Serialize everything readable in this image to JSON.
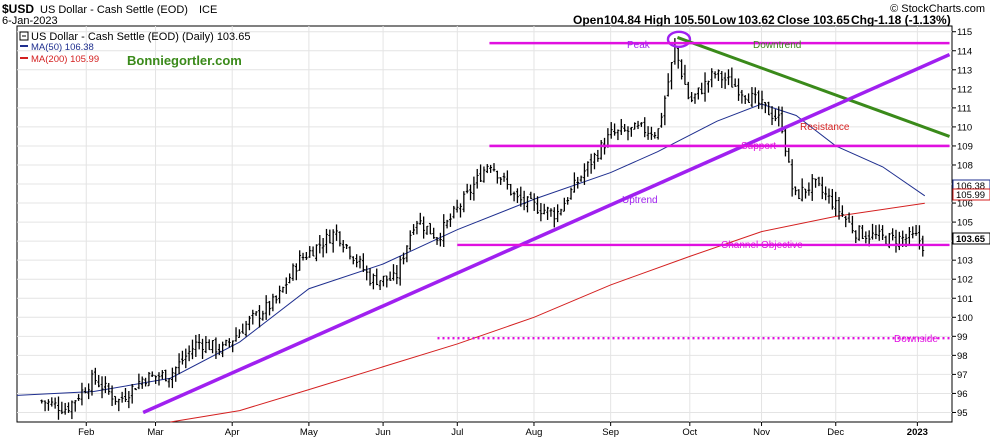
{
  "header": {
    "symbol": "$USD",
    "name": "US Dollar - Cash Settle (EOD)",
    "exchange": "ICE",
    "copyright": "© StockCharts.com",
    "date": "6-Jan-2023",
    "ohlc": {
      "open_label": "Open",
      "open": "104.84",
      "high_label": "High",
      "high": "105.50",
      "low_label": "Low",
      "low": "103.62",
      "close_label": "Close",
      "close": "103.65",
      "chg_label": "Chg",
      "chg": "-1.18 (-1.13%)"
    }
  },
  "legend": {
    "price": "US Dollar - Cash Settle (EOD) (Daily) 103.65",
    "ma50": "MA(50) 106.38",
    "ma200": "MA(200) 105.99",
    "watermark": "Bonniegortler.com"
  },
  "colors": {
    "bars": "#000000",
    "ma50": "#1f2f8f",
    "ma200": "#d42020",
    "trend_lines": "#a020f0",
    "channel_lines": "#e010e0",
    "downtrend": "#3a8a1a",
    "grid": "#e4e4e4"
  },
  "chart_data": {
    "type": "line",
    "title": "US Dollar - Cash Settle (EOD) (Daily)",
    "ylim": [
      94.5,
      115.3
    ],
    "y_ticks": [
      95,
      96,
      97,
      98,
      99,
      100,
      101,
      102,
      103,
      104,
      105,
      106,
      107,
      108,
      109,
      110,
      111,
      112,
      113,
      114,
      115
    ],
    "x_ticks": [
      "Feb",
      "Mar",
      "Apr",
      "May",
      "Jun",
      "Jul",
      "Aug",
      "Sep",
      "Oct",
      "Nov",
      "Dec",
      "2023"
    ],
    "grid": true,
    "last_value_tags": [
      {
        "label": "106.38",
        "value": 106.38,
        "color": "#1f2f8f"
      },
      {
        "label": "105.99",
        "value": 105.99,
        "color": "#d42020"
      },
      {
        "label": "103.65",
        "value": 103.65,
        "color": "#000000"
      }
    ],
    "series": [
      {
        "name": "US Dollar - Cash Settle (EOD)",
        "style": "ohlc-bars",
        "x": [
          "2022-01-14",
          "2022-01-24",
          "2022-02-04",
          "2022-02-14",
          "2022-02-24",
          "2022-03-07",
          "2022-03-18",
          "2022-03-28",
          "2022-04-08",
          "2022-04-19",
          "2022-04-28",
          "2022-05-13",
          "2022-05-27",
          "2022-06-06",
          "2022-06-14",
          "2022-06-23",
          "2022-07-05",
          "2022-07-14",
          "2022-07-25",
          "2022-08-02",
          "2022-08-10",
          "2022-08-22",
          "2022-09-01",
          "2022-09-13",
          "2022-09-20",
          "2022-09-27",
          "2022-10-03",
          "2022-10-13",
          "2022-10-21",
          "2022-10-31",
          "2022-11-09",
          "2022-11-14",
          "2022-11-22",
          "2022-11-30",
          "2022-12-09",
          "2022-12-15",
          "2022-12-23",
          "2023-01-03",
          "2023-01-06"
        ],
        "values": [
          95.6,
          95.2,
          96.8,
          95.6,
          96.8,
          97.0,
          98.7,
          98.3,
          99.8,
          100.9,
          103.0,
          104.5,
          102.0,
          102.0,
          105.2,
          104.2,
          106.4,
          108.2,
          106.2,
          105.8,
          105.4,
          107.8,
          109.6,
          109.9,
          109.7,
          114.1,
          111.3,
          112.8,
          112.2,
          111.2,
          110.3,
          106.3,
          107.0,
          106.0,
          104.5,
          104.3,
          104.1,
          104.2,
          103.65
        ]
      },
      {
        "name": "MA(50)",
        "x": [
          "2022-01-04",
          "2022-02-04",
          "2022-03-07",
          "2022-04-04",
          "2022-05-02",
          "2022-06-01",
          "2022-07-01",
          "2022-08-01",
          "2022-09-01",
          "2022-09-20",
          "2022-10-14",
          "2022-11-01",
          "2022-11-15",
          "2022-12-01",
          "2022-12-20",
          "2023-01-06"
        ],
        "values": [
          95.9,
          96.1,
          96.8,
          98.7,
          101.5,
          102.8,
          104.6,
          106.2,
          107.6,
          108.7,
          110.3,
          111.2,
          110.6,
          109.0,
          107.9,
          106.38
        ]
      },
      {
        "name": "MA(200)",
        "x": [
          "2022-03-07",
          "2022-04-04",
          "2022-05-02",
          "2022-06-01",
          "2022-07-01",
          "2022-08-01",
          "2022-09-01",
          "2022-10-03",
          "2022-11-01",
          "2022-12-01",
          "2023-01-06"
        ],
        "values": [
          94.5,
          95.1,
          96.2,
          97.4,
          98.6,
          100.0,
          101.7,
          103.2,
          104.5,
          105.3,
          105.99
        ]
      }
    ],
    "annotations": [
      {
        "text": "Peak",
        "kind": "circle",
        "x": "2022-09-27",
        "y": 114.6,
        "color": "#a020f0"
      },
      {
        "text": "Downtrend",
        "kind": "trendline",
        "from": [
          "2022-09-28",
          114.7
        ],
        "to": [
          "2023-01-16",
          109.5
        ],
        "color": "#3a8a1a"
      },
      {
        "text": "Uptrend",
        "kind": "trendline",
        "from": [
          "2022-02-24",
          95.0
        ],
        "to": [
          "2023-01-16",
          113.8
        ],
        "color": "#a020f0"
      },
      {
        "text": "Resistance",
        "kind": "hline",
        "y": 109.0,
        "from": "2022-07-14",
        "to": "2023-01-16",
        "color": "#e010e0"
      },
      {
        "text": "Support",
        "kind": "hline",
        "y": 109.0,
        "from": "2022-07-14",
        "to": "2023-01-16",
        "color": "#e010e0"
      },
      {
        "text": "Channel Objective",
        "kind": "hline",
        "y": 103.8,
        "from": "2022-07-01",
        "to": "2023-01-16",
        "color": "#e010e0"
      },
      {
        "text": "Downside",
        "kind": "dotted-hline",
        "y": 98.9,
        "from": "2022-06-23",
        "to": "2023-01-16",
        "color": "#e010e0"
      },
      {
        "text": "",
        "kind": "hline",
        "y": 114.4,
        "from": "2022-07-14",
        "to": "2023-01-16",
        "color": "#e010e0"
      }
    ]
  }
}
